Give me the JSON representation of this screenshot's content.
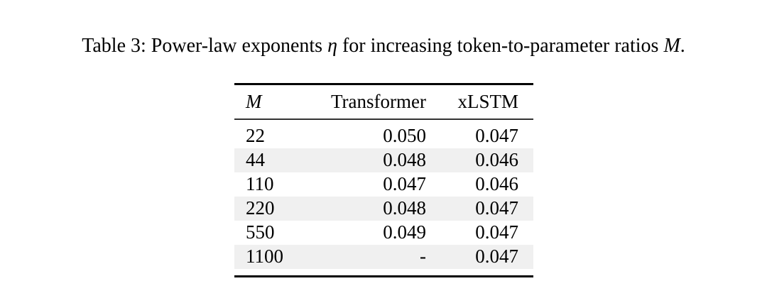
{
  "caption": {
    "prefix": "Table 3: Power-law exponents ",
    "eta": "η",
    "middle": " for increasing token-to-parameter ratios ",
    "m": "M",
    "suffix": "."
  },
  "table": {
    "headers": [
      "M",
      "Transformer",
      "xLSTM"
    ],
    "rows": [
      {
        "m": "22",
        "transformer": "0.050",
        "xlstm": "0.047"
      },
      {
        "m": "44",
        "transformer": "0.048",
        "xlstm": "0.046"
      },
      {
        "m": "110",
        "transformer": "0.047",
        "xlstm": "0.046"
      },
      {
        "m": "220",
        "transformer": "0.048",
        "xlstm": "0.047"
      },
      {
        "m": "550",
        "transformer": "0.049",
        "xlstm": "0.047"
      },
      {
        "m": "1100",
        "transformer": "-",
        "xlstm": "0.047"
      }
    ]
  },
  "colors": {
    "stripe": "#f0f0f0",
    "rule": "#000000",
    "text": "#000000",
    "background": "#ffffff"
  }
}
